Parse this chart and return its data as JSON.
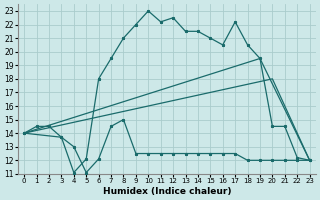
{
  "title": "",
  "xlabel": "Humidex (Indice chaleur)",
  "bg_color": "#cde8e8",
  "grid_color": "#aacccc",
  "line_color": "#1a6b6b",
  "xlim": [
    -0.5,
    23.5
  ],
  "ylim": [
    11,
    23.5
  ],
  "xticks": [
    0,
    1,
    2,
    3,
    4,
    5,
    6,
    7,
    8,
    9,
    10,
    11,
    12,
    13,
    14,
    15,
    16,
    17,
    18,
    19,
    20,
    21,
    22,
    23
  ],
  "yticks": [
    11,
    12,
    13,
    14,
    15,
    16,
    17,
    18,
    19,
    20,
    21,
    22,
    23
  ],
  "series1_x": [
    0,
    1,
    2,
    3,
    4,
    5,
    6,
    7,
    8,
    9,
    10,
    11,
    12,
    13,
    14,
    15,
    16,
    17,
    18,
    19,
    20,
    21,
    22,
    23
  ],
  "series1_y": [
    14,
    14.5,
    14.5,
    13.7,
    11.1,
    12.1,
    18,
    19.5,
    21,
    22,
    23.0,
    22.2,
    22.5,
    21.5,
    21.5,
    21.0,
    20.5,
    22.2,
    20.5,
    19.5,
    14.5,
    14.5,
    12.2,
    12.0
  ],
  "series2_x": [
    0,
    20,
    23
  ],
  "series2_y": [
    14,
    18,
    12
  ],
  "series3_x": [
    0,
    19,
    23
  ],
  "series3_y": [
    14,
    19.5,
    12
  ],
  "series4_x": [
    0,
    3,
    4,
    5,
    6,
    7,
    8,
    9,
    10,
    11,
    12,
    13,
    14,
    15,
    16,
    17,
    18,
    19,
    20,
    21,
    22,
    23
  ],
  "series4_y": [
    14,
    13.7,
    13.0,
    11.1,
    12.1,
    14.5,
    15.0,
    12.5,
    12.5,
    12.5,
    12.5,
    12.5,
    12.5,
    12.5,
    12.5,
    12.5,
    12.0,
    12.0,
    12.0,
    12.0,
    12.0,
    12.0
  ]
}
